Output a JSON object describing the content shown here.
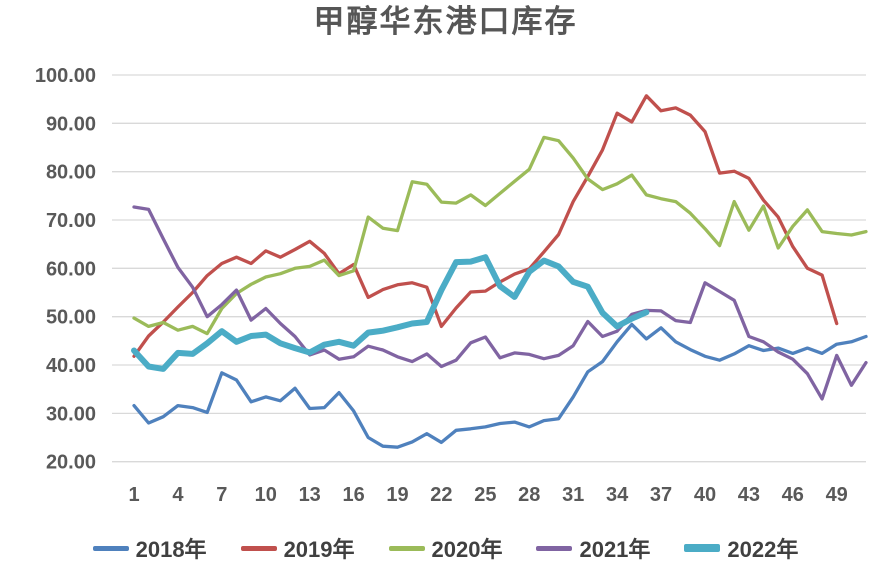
{
  "chart": {
    "title": "甲醇华东港口库存",
    "y_axis": {
      "tick_values": [
        100,
        90,
        80,
        70,
        60,
        50,
        40,
        30,
        20
      ],
      "tick_labels": [
        "100.00",
        "90.00",
        "80.00",
        "70.00",
        "60.00",
        "50.00",
        "40.00",
        "30.00",
        "20.00"
      ]
    },
    "x_axis": {
      "tick_weeks": [
        1,
        4,
        7,
        10,
        13,
        16,
        19,
        22,
        25,
        28,
        31,
        34,
        37,
        40,
        43,
        46,
        49
      ],
      "tick_labels": [
        "1",
        "4",
        "7",
        "10",
        "13",
        "16",
        "19",
        "22",
        "25",
        "28",
        "31",
        "34",
        "37",
        "40",
        "43",
        "46",
        "49"
      ]
    }
  },
  "chart_data": {
    "type": "line",
    "title": "甲醇华东港口库存",
    "xlabel": "",
    "ylabel": "",
    "ylim": [
      20,
      100
    ],
    "x_is_week_number": true,
    "grid": true,
    "legend_position": "bottom",
    "series": [
      {
        "name": "2018年",
        "color": "#4F81BD",
        "width": 3.3,
        "x_start_week": 1,
        "values": [
          31.6,
          28,
          29.3,
          31.6,
          31.2,
          30.2,
          38.4,
          36.9,
          32.4,
          33.4,
          32.6,
          35.2,
          31,
          31.2,
          34.3,
          30.5,
          25,
          23.2,
          23,
          24.1,
          25.8,
          24,
          26.5,
          26.8,
          27.2,
          27.9,
          28.2,
          27.2,
          28.5,
          28.9,
          33.4,
          38.6,
          40.7,
          44.8,
          48.4,
          45.4,
          47.7,
          44.8,
          43.2,
          41.8,
          41,
          42.3,
          44,
          43,
          43.5,
          42.4,
          43.5,
          42.4,
          44.3,
          44.8,
          45.9
        ]
      },
      {
        "name": "2019年",
        "color": "#C0504D",
        "width": 3.3,
        "x_start_week": 1,
        "values": [
          41.8,
          46,
          48.9,
          52,
          55,
          58.5,
          61,
          62.3,
          61,
          63.6,
          62.3,
          63.9,
          65.6,
          63.1,
          58.9,
          60.8,
          54,
          55.6,
          56.6,
          57,
          56.1,
          48,
          51.8,
          55.1,
          55.3,
          57.2,
          58.8,
          59.9,
          63.4,
          67,
          73.8,
          79,
          84.5,
          92.1,
          90.3,
          95.7,
          92.6,
          93.2,
          91.7,
          88.3,
          79.7,
          80.1,
          78.6,
          74.1,
          70.6,
          64.5,
          60,
          58.6,
          48.6
        ]
      },
      {
        "name": "2020年",
        "color": "#9BBB59",
        "width": 3.3,
        "x_start_week": 1,
        "values": [
          49.7,
          48,
          48.8,
          47.2,
          48,
          46.5,
          51.7,
          54.8,
          56.7,
          58.2,
          58.9,
          60,
          60.4,
          61.7,
          58.5,
          59.5,
          70.6,
          68.3,
          67.8,
          77.9,
          77.4,
          73.7,
          73.5,
          75.2,
          73,
          75.5,
          78,
          80.5,
          87.1,
          86.4,
          82.8,
          78.5,
          76.3,
          77.5,
          79.3,
          75.2,
          74.4,
          73.8,
          71.4,
          68.2,
          64.7,
          73.8,
          67.9,
          72.9,
          64.2,
          68.7,
          72.1,
          67.6,
          67.2,
          66.9,
          67.6
        ]
      },
      {
        "name": "2021年",
        "color": "#8064A2",
        "width": 3.3,
        "x_start_week": 1,
        "values": [
          72.7,
          72.2,
          66.1,
          60.2,
          56.1,
          50,
          52.5,
          55.5,
          49.3,
          51.7,
          48.6,
          45.9,
          42.1,
          43.1,
          41.2,
          41.7,
          43.9,
          43.1,
          41.7,
          40.7,
          42.3,
          39.7,
          41,
          44.6,
          45.8,
          41.5,
          42.5,
          42.2,
          41.3,
          42,
          44,
          49,
          45.9,
          47,
          50.5,
          51.3,
          51.2,
          49.2,
          48.8,
          57,
          55.2,
          53.4,
          45.9,
          44.8,
          42.7,
          41.2,
          38.2,
          33,
          42,
          35.8,
          40.5
        ]
      },
      {
        "name": "2022年",
        "color": "#4BACC6",
        "width": 6,
        "x_start_week": 1,
        "values": [
          43,
          39.7,
          39.2,
          42.5,
          42.3,
          44.5,
          47,
          44.8,
          46,
          46.3,
          44.5,
          43.5,
          42.6,
          44.2,
          44.8,
          44,
          46.7,
          47.1,
          47.8,
          48.6,
          48.9,
          55.5,
          61.3,
          61.4,
          62.3,
          56.3,
          54.1,
          59.3,
          61.6,
          60.4,
          57.2,
          56.2,
          50.8,
          48,
          49.6,
          50.9
        ]
      }
    ]
  }
}
